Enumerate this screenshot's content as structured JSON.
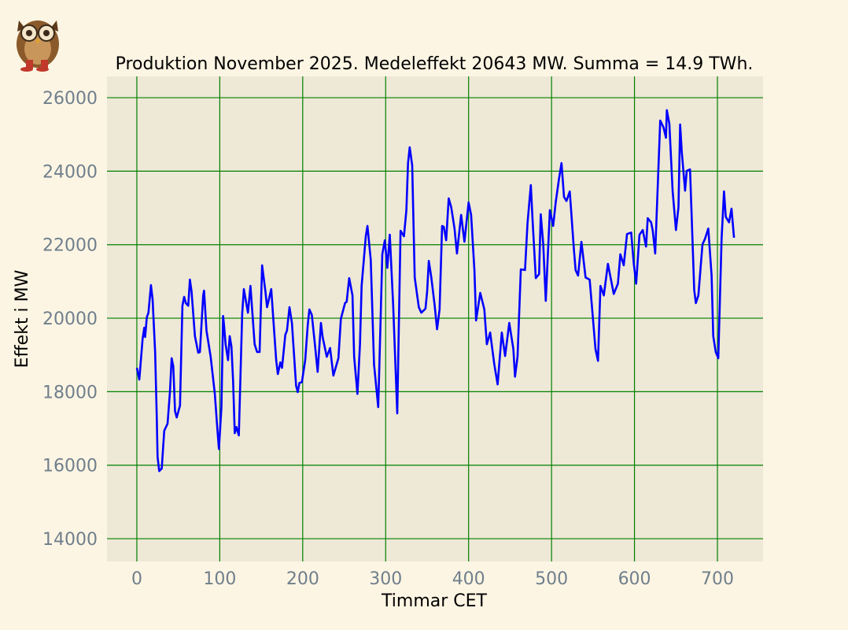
{
  "chart_data": {
    "type": "line",
    "title": "Produktion November 2025. Medeleffekt 20643 MW. Summa = 14.9 TWh.",
    "xlabel": "Timmar CET",
    "ylabel": "Effekt i MW",
    "xlim": [
      -36,
      755
    ],
    "ylim": [
      13380,
      26580
    ],
    "xticks": [
      0,
      100,
      200,
      300,
      400,
      500,
      600,
      700
    ],
    "yticks": [
      14000,
      16000,
      18000,
      20000,
      22000,
      24000,
      26000
    ],
    "grid": true,
    "colors": {
      "line": "#0000ff",
      "grid": "#008000",
      "plot_bg": "#eee8d6",
      "page_bg": "#fdf5e3",
      "tick": "#6f7f8c"
    },
    "series": [
      {
        "name": "Effekt",
        "x": [
          0,
          3,
          7,
          9,
          10,
          12,
          14,
          17,
          19,
          22,
          24,
          25,
          27,
          30,
          33,
          37,
          40,
          42,
          44,
          46,
          48,
          52,
          55,
          57,
          59,
          62,
          64,
          66,
          70,
          74,
          76,
          80,
          81,
          84,
          89,
          94,
          97,
          99,
          102,
          104,
          105,
          107,
          110,
          112,
          114,
          116,
          118,
          120,
          123,
          127,
          129,
          134,
          137,
          142,
          145,
          148,
          151,
          155,
          157,
          162,
          168,
          170,
          173,
          175,
          179,
          181,
          184,
          187,
          192,
          194,
          196,
          199,
          203,
          206,
          208,
          211,
          214,
          218,
          222,
          224,
          229,
          233,
          237,
          243,
          246,
          251,
          253,
          256,
          260,
          262,
          266,
          269,
          271,
          274,
          276,
          278,
          282,
          286,
          291,
          294,
          296,
          299,
          302,
          305,
          309,
          314,
          318,
          322,
          325,
          327,
          329,
          332,
          335,
          340,
          343,
          348,
          350,
          352,
          355,
          359,
          362,
          365,
          368,
          370,
          373,
          376,
          379,
          383,
          386,
          391,
          395,
          400,
          403,
          407,
          409,
          414,
          419,
          422,
          426,
          431,
          435,
          440,
          444,
          449,
          454,
          456,
          459,
          463,
          468,
          471,
          475,
          477,
          481,
          485,
          487,
          490,
          493,
          498,
          502,
          505,
          509,
          512,
          515,
          518,
          522,
          527,
          529,
          532,
          536,
          541,
          546,
          549,
          553,
          556,
          559,
          563,
          568,
          575,
          580,
          583,
          587,
          591,
          596,
          599,
          602,
          606,
          610,
          614,
          616,
          620,
          622,
          625,
          631,
          635,
          638,
          639,
          642,
          646,
          650,
          653,
          655,
          657,
          661,
          663,
          667,
          672,
          674,
          677,
          682,
          685,
          689,
          693,
          695,
          698,
          701,
          705,
          708,
          710,
          714,
          717,
          720
        ],
        "y": [
          18650,
          18330,
          19440,
          19740,
          19490,
          20020,
          20150,
          20900,
          20510,
          19080,
          17300,
          16230,
          15840,
          15910,
          16940,
          17130,
          18010,
          18910,
          18690,
          17470,
          17300,
          17620,
          20340,
          20580,
          20410,
          20340,
          21050,
          20730,
          19510,
          19060,
          19080,
          20620,
          20750,
          19660,
          18950,
          17940,
          17020,
          16440,
          17580,
          20060,
          19830,
          19290,
          18860,
          19510,
          19230,
          18310,
          16870,
          17040,
          16810,
          20130,
          20790,
          20150,
          20880,
          19290,
          19080,
          19080,
          21440,
          20730,
          20300,
          20790,
          18860,
          18480,
          18800,
          18650,
          19550,
          19660,
          20300,
          19870,
          18160,
          17990,
          18240,
          18260,
          18860,
          19810,
          20240,
          20090,
          19440,
          18540,
          19870,
          19490,
          18950,
          19190,
          18440,
          18910,
          19980,
          20410,
          20450,
          21090,
          20620,
          18950,
          17940,
          19290,
          20880,
          21690,
          22230,
          22510,
          21590,
          18740,
          17580,
          20020,
          21740,
          22120,
          21370,
          22270,
          20360,
          17410,
          22380,
          22230,
          22940,
          24220,
          24650,
          24160,
          21110,
          20300,
          20150,
          20260,
          20730,
          21560,
          21110,
          20360,
          19700,
          20240,
          22510,
          22490,
          22120,
          23260,
          23020,
          22440,
          21760,
          22810,
          22080,
          23150,
          22810,
          21310,
          19940,
          20690,
          20240,
          19290,
          19610,
          18740,
          18200,
          19610,
          18970,
          19870,
          19160,
          18410,
          18950,
          21330,
          21310,
          22590,
          23620,
          22720,
          21090,
          21200,
          22830,
          22010,
          20470,
          22940,
          22510,
          23150,
          23790,
          24220,
          23300,
          23190,
          23450,
          21860,
          21310,
          21160,
          22080,
          21110,
          21050,
          20240,
          19160,
          18840,
          20880,
          20620,
          21480,
          20660,
          20940,
          21740,
          21440,
          22290,
          22330,
          21520,
          20940,
          22270,
          22400,
          21950,
          22720,
          22610,
          22380,
          21760,
          25380,
          25190,
          24910,
          25660,
          25290,
          23450,
          22400,
          23020,
          25270,
          24520,
          23470,
          24010,
          24050,
          20770,
          20410,
          20620,
          22010,
          22160,
          22440,
          21160,
          19510,
          19080,
          18910,
          22160,
          23450,
          22760,
          22610,
          22980,
          22190
        ]
      }
    ]
  }
}
